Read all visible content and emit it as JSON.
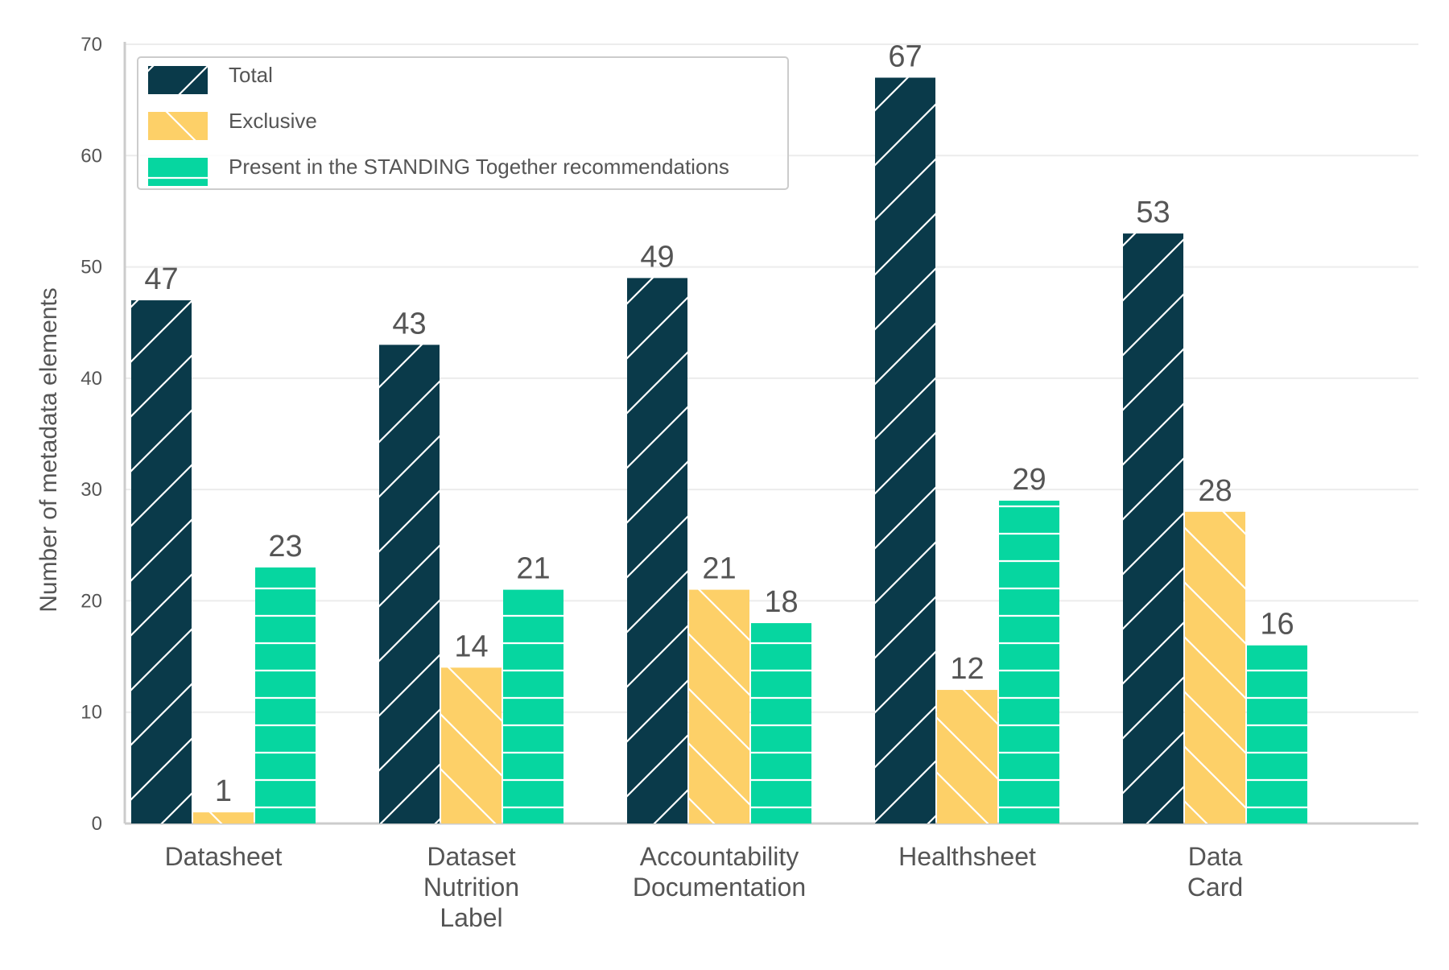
{
  "chart_data": {
    "type": "bar",
    "ylabel": "Number of metadata elements",
    "xlabel": "",
    "ylim": [
      0,
      70
    ],
    "yticks": [
      0,
      10,
      20,
      30,
      40,
      50,
      60,
      70
    ],
    "grid": "horizontal",
    "legend_position": "top-left",
    "categories": [
      [
        "Datasheet"
      ],
      [
        "Dataset",
        "Nutrition",
        "Label"
      ],
      [
        "Accountability",
        "Documentation"
      ],
      [
        "Healthsheet"
      ],
      [
        "Data",
        "Card"
      ]
    ],
    "series": [
      {
        "name": "Total",
        "values": [
          47,
          43,
          49,
          67,
          53
        ],
        "color": "#0a3a4a",
        "hatch": "forward-diagonal"
      },
      {
        "name": "Exclusive",
        "values": [
          1,
          14,
          21,
          12,
          28
        ],
        "color": "#fdd068",
        "hatch": "backward-diagonal"
      },
      {
        "name": "Present in the STANDING Together recommendations",
        "values": [
          23,
          21,
          18,
          29,
          16
        ],
        "color": "#06d6a0",
        "hatch": "horizontal"
      }
    ]
  }
}
